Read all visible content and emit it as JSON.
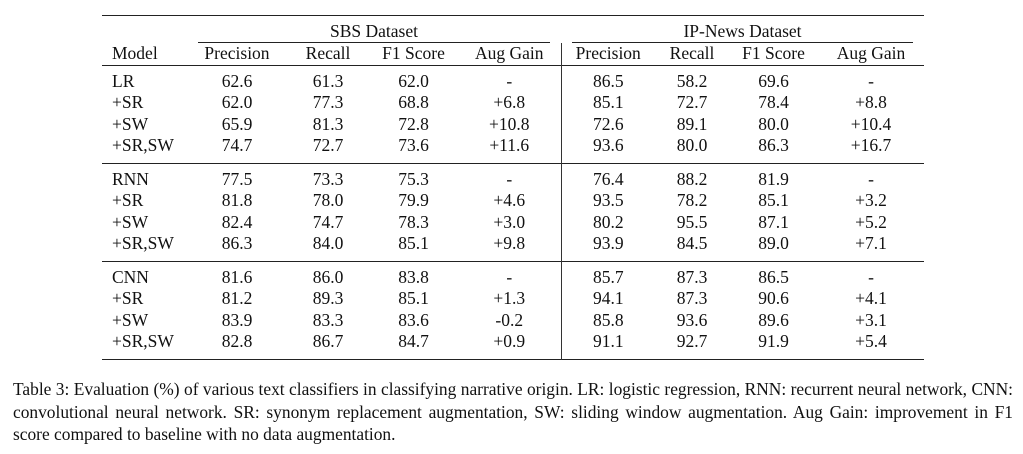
{
  "table": {
    "group_headers": [
      "SBS Dataset",
      "IP-News Dataset"
    ],
    "columns": [
      "Model",
      "Precision",
      "Recall",
      "F1 Score",
      "Aug Gain",
      "Precision",
      "Recall",
      "F1 Score",
      "Aug Gain"
    ],
    "groups": [
      {
        "rows": [
          [
            "LR",
            "62.6",
            "61.3",
            "62.0",
            "-",
            "86.5",
            "58.2",
            "69.6",
            "-"
          ],
          [
            "+SR",
            "62.0",
            "77.3",
            "68.8",
            "+6.8",
            "85.1",
            "72.7",
            "78.4",
            "+8.8"
          ],
          [
            "+SW",
            "65.9",
            "81.3",
            "72.8",
            "+10.8",
            "72.6",
            "89.1",
            "80.0",
            "+10.4"
          ],
          [
            "+SR,SW",
            "74.7",
            "72.7",
            "73.6",
            "+11.6",
            "93.6",
            "80.0",
            "86.3",
            "+16.7"
          ]
        ],
        "bold_cells": [
          [
            3,
            3
          ],
          [
            3,
            7
          ]
        ]
      },
      {
        "rows": [
          [
            "RNN",
            "77.5",
            "73.3",
            "75.3",
            "-",
            "76.4",
            "88.2",
            "81.9",
            "-"
          ],
          [
            "+SR",
            "81.8",
            "78.0",
            "79.9",
            "+4.6",
            "93.5",
            "78.2",
            "85.1",
            "+3.2"
          ],
          [
            "+SW",
            "82.4",
            "74.7",
            "78.3",
            "+3.0",
            "80.2",
            "95.5",
            "87.1",
            "+5.2"
          ],
          [
            "+SR,SW",
            "86.3",
            "84.0",
            "85.1",
            "+9.8",
            "93.9",
            "84.5",
            "89.0",
            "+7.1"
          ]
        ],
        "bold_cells": [
          [
            3,
            3
          ],
          [
            3,
            7
          ]
        ]
      },
      {
        "rows": [
          [
            "CNN",
            "81.6",
            "86.0",
            "83.8",
            "-",
            "85.7",
            "87.3",
            "86.5",
            "-"
          ],
          [
            "+SR",
            "81.2",
            "89.3",
            "85.1",
            "+1.3",
            "94.1",
            "87.3",
            "90.6",
            "+4.1"
          ],
          [
            "+SW",
            "83.9",
            "83.3",
            "83.6",
            "-0.2",
            "85.8",
            "93.6",
            "89.6",
            "+3.1"
          ],
          [
            "+SR,SW",
            "82.8",
            "86.7",
            "84.7",
            "+0.9",
            "91.1",
            "92.7",
            "91.9",
            "+5.4"
          ]
        ],
        "bold_cells": [
          [
            1,
            3
          ],
          [
            3,
            7
          ]
        ]
      }
    ]
  },
  "caption": "Table 3: Evaluation (%) of various text classifiers in classifying narrative origin. LR: logistic regression, RNN: recurrent neural network, CNN: convolutional neural network. SR: synonym replacement augmentation, SW: sliding window augmentation. Aug Gain: improvement in F1 score compared to baseline with no data augmentation."
}
